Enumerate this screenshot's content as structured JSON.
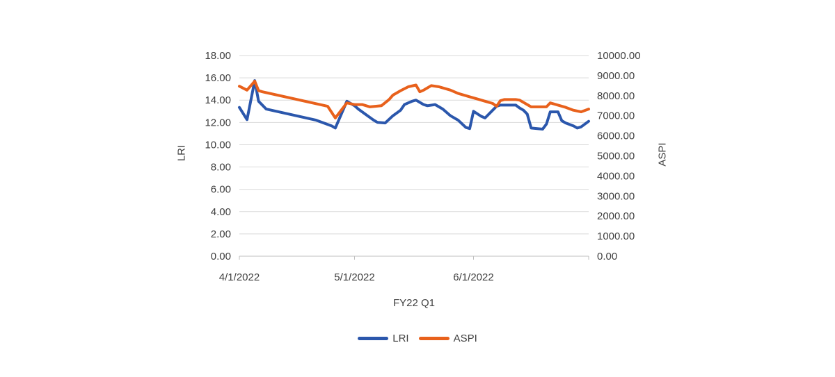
{
  "chart_data": {
    "type": "line",
    "title": "",
    "x_axis": {
      "title": "FY22 Q1",
      "start_date": "4/1/2022",
      "ticks": [
        {
          "label": "4/1/2022",
          "day": 0
        },
        {
          "label": "5/1/2022",
          "day": 30
        },
        {
          "label": "6/1/2022",
          "day": 61
        }
      ],
      "end_day": 91
    },
    "left_axis": {
      "title": "LRI",
      "min": 0,
      "max": 18,
      "ticks": [
        {
          "label": "18.00",
          "value": 18
        },
        {
          "label": "16.00",
          "value": 16
        },
        {
          "label": "14.00",
          "value": 14
        },
        {
          "label": "12.00",
          "value": 12
        },
        {
          "label": "10.00",
          "value": 10
        },
        {
          "label": "8.00",
          "value": 8
        },
        {
          "label": "6.00",
          "value": 6
        },
        {
          "label": "4.00",
          "value": 4
        },
        {
          "label": "2.00",
          "value": 2
        },
        {
          "label": "0.00",
          "value": 0
        }
      ]
    },
    "right_axis": {
      "title": "ASPI",
      "min": 0,
      "max": 10000,
      "ticks": [
        {
          "label": "10000.00",
          "value": 10000
        },
        {
          "label": "9000.00",
          "value": 9000
        },
        {
          "label": "8000.00",
          "value": 8000
        },
        {
          "label": "7000.00",
          "value": 7000
        },
        {
          "label": "6000.00",
          "value": 6000
        },
        {
          "label": "5000.00",
          "value": 5000
        },
        {
          "label": "4000.00",
          "value": 4000
        },
        {
          "label": "3000.00",
          "value": 3000
        },
        {
          "label": "2000.00",
          "value": 2000
        },
        {
          "label": "1000.00",
          "value": 1000
        },
        {
          "label": "0.00",
          "value": 0
        }
      ]
    },
    "series": [
      {
        "name": "LRI",
        "axis": "left",
        "color": "#2b57ac",
        "points": [
          [
            0,
            13.35
          ],
          [
            2,
            12.25
          ],
          [
            4,
            15.75
          ],
          [
            5,
            13.9
          ],
          [
            7,
            13.2
          ],
          [
            20,
            12.2
          ],
          [
            24,
            11.7
          ],
          [
            25,
            11.5
          ],
          [
            28,
            13.9
          ],
          [
            30,
            13.5
          ],
          [
            31,
            13.2
          ],
          [
            33,
            12.7
          ],
          [
            35,
            12.2
          ],
          [
            36,
            12.0
          ],
          [
            38,
            11.95
          ],
          [
            40,
            12.6
          ],
          [
            42,
            13.1
          ],
          [
            43,
            13.6
          ],
          [
            45,
            13.9
          ],
          [
            46,
            14.0
          ],
          [
            48,
            13.6
          ],
          [
            49,
            13.5
          ],
          [
            51,
            13.6
          ],
          [
            53,
            13.2
          ],
          [
            55,
            12.6
          ],
          [
            57,
            12.2
          ],
          [
            59,
            11.55
          ],
          [
            60,
            11.45
          ],
          [
            61,
            13.0
          ],
          [
            63,
            12.55
          ],
          [
            64,
            12.4
          ],
          [
            66,
            13.1
          ],
          [
            67,
            13.45
          ],
          [
            68,
            13.55
          ],
          [
            72,
            13.55
          ],
          [
            73,
            13.3
          ],
          [
            74,
            13.1
          ],
          [
            75,
            12.75
          ],
          [
            76,
            11.5
          ],
          [
            79,
            11.4
          ],
          [
            80,
            11.85
          ],
          [
            81,
            12.95
          ],
          [
            83,
            12.95
          ],
          [
            84,
            12.15
          ],
          [
            85,
            11.95
          ],
          [
            87,
            11.7
          ],
          [
            88,
            11.5
          ],
          [
            89,
            11.6
          ],
          [
            91,
            12.1
          ]
        ]
      },
      {
        "name": "ASPI",
        "axis": "right",
        "color": "#e8611c",
        "points": [
          [
            0,
            8472
          ],
          [
            2,
            8278
          ],
          [
            4,
            8722
          ],
          [
            5,
            8250
          ],
          [
            6,
            8194
          ],
          [
            23,
            7472
          ],
          [
            25,
            6889
          ],
          [
            28,
            7639
          ],
          [
            30,
            7556
          ],
          [
            32,
            7556
          ],
          [
            34,
            7444
          ],
          [
            37,
            7500
          ],
          [
            39,
            7806
          ],
          [
            40,
            8028
          ],
          [
            42,
            8250
          ],
          [
            44,
            8444
          ],
          [
            46,
            8528
          ],
          [
            47,
            8194
          ],
          [
            48,
            8278
          ],
          [
            50,
            8500
          ],
          [
            52,
            8444
          ],
          [
            55,
            8278
          ],
          [
            57,
            8111
          ],
          [
            60,
            7944
          ],
          [
            62,
            7833
          ],
          [
            64,
            7722
          ],
          [
            66,
            7611
          ],
          [
            67,
            7472
          ],
          [
            68,
            7750
          ],
          [
            69,
            7806
          ],
          [
            72,
            7806
          ],
          [
            73,
            7778
          ],
          [
            75,
            7556
          ],
          [
            76,
            7444
          ],
          [
            80,
            7444
          ],
          [
            81,
            7639
          ],
          [
            83,
            7528
          ],
          [
            85,
            7417
          ],
          [
            87,
            7278
          ],
          [
            89,
            7194
          ],
          [
            91,
            7333
          ]
        ]
      }
    ],
    "legend": {
      "position": "bottom"
    },
    "colors": {
      "gridline": "#d9d9d9",
      "axis_line": "#bfbfbf",
      "text": "#404040",
      "background": "#ffffff"
    }
  }
}
